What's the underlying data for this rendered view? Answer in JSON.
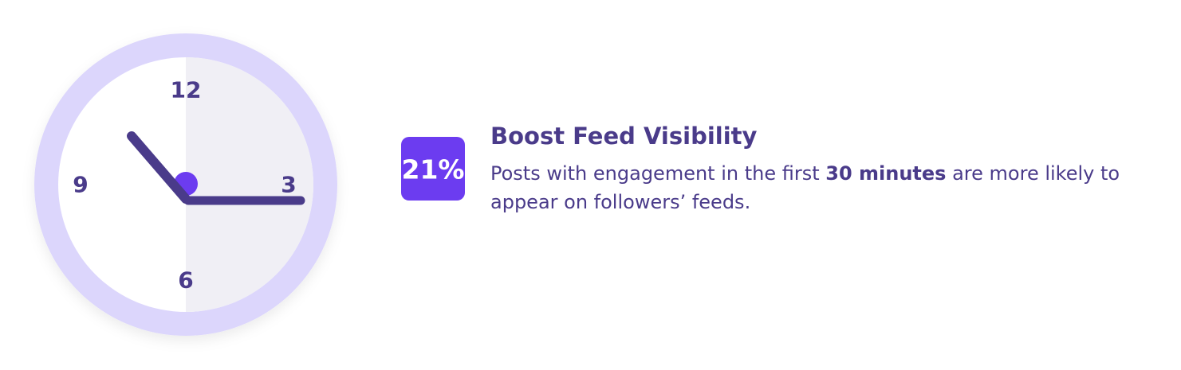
{
  "clock": {
    "numerals": [
      "12",
      "3",
      "6",
      "9"
    ]
  },
  "stat": {
    "badge": "21%",
    "title": "Boost Feed Visibility",
    "description": {
      "before": "Posts with engagement in the first ",
      "emphasis": "30 minutes",
      "after": " are more likely to appear on followers’ feeds."
    }
  }
}
